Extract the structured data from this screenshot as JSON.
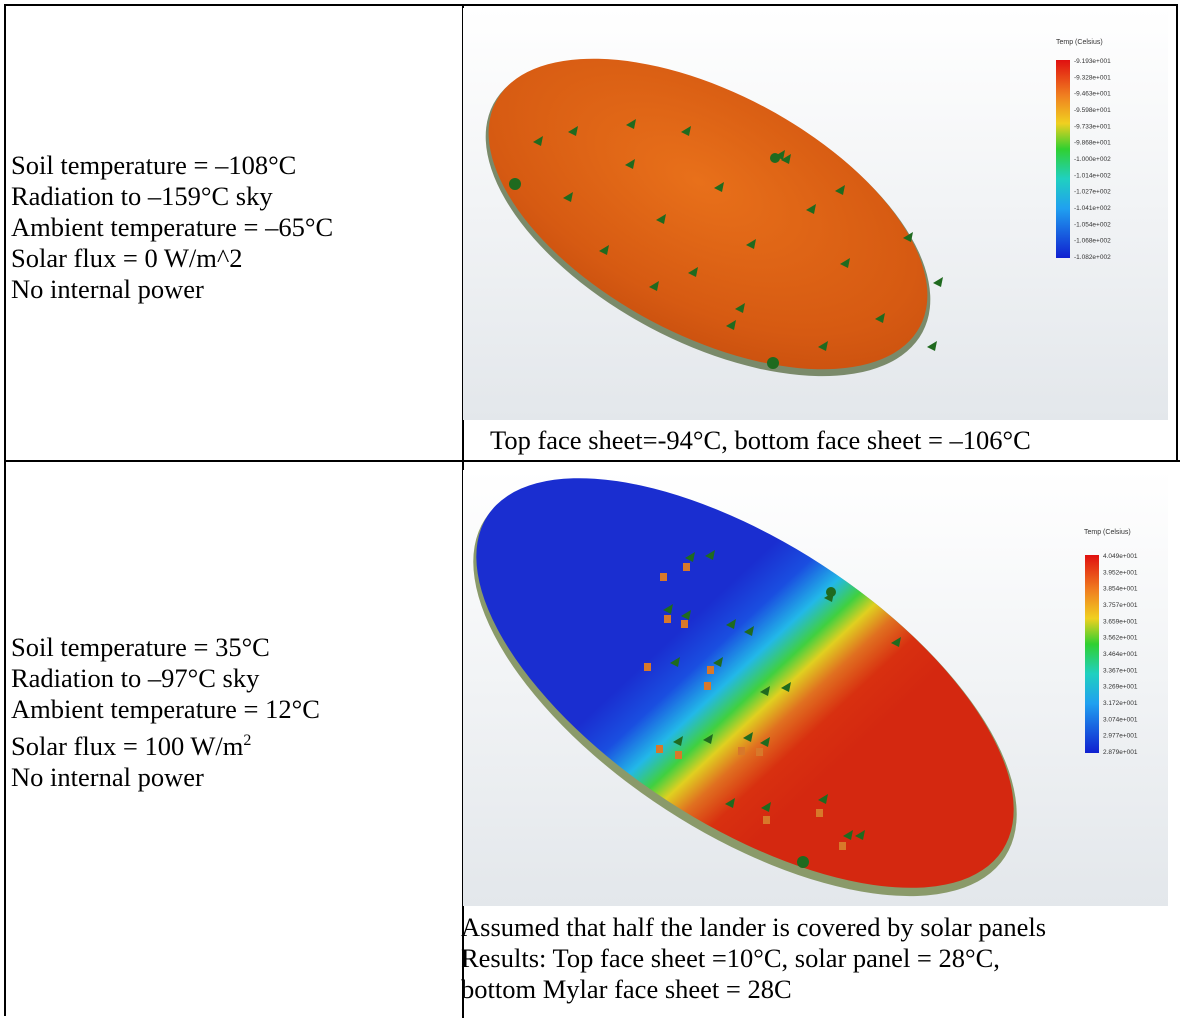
{
  "rows": [
    {
      "conditions": [
        "Soil temperature = –108°C",
        "Radiation to –159°C sky",
        "Ambient temperature = –65°C",
        "Solar flux = 0 W/m^2",
        "No internal power"
      ],
      "legend_title": "Temp (Celsius)",
      "legend_ticks": [
        "-9.193e+001",
        "-9.328e+001",
        "-9.463e+001",
        "-9.598e+001",
        "-9.733e+001",
        "-9.868e+001",
        "-1.000e+002",
        "-1.014e+002",
        "-1.027e+002",
        "-1.041e+002",
        "-1.054e+002",
        "-1.068e+002",
        "-1.082e+002"
      ],
      "caption": [
        "Top face sheet=-94°C, bottom face sheet = –106°C"
      ]
    },
    {
      "conditions": [
        "Soil temperature = 35°C",
        "Radiation to –97°C sky",
        "Ambient temperature = 12°C",
        "Solar flux = 100 W/m",
        "No internal power"
      ],
      "solar_flux_superscript": "2",
      "legend_title": "Temp (Celsius)",
      "legend_ticks": [
        "4.049e+001",
        "3.952e+001",
        "3.854e+001",
        "3.757e+001",
        "3.659e+001",
        "3.562e+001",
        "3.464e+001",
        "3.367e+001",
        "3.269e+001",
        "3.172e+001",
        "3.074e+001",
        "2.977e+001",
        "2.879e+001"
      ],
      "caption": [
        "Assumed that half the lander is covered by solar panels",
        "Results: Top face sheet =10°C, solar panel = 28°C,",
        "bottom Mylar face sheet = 28C"
      ]
    }
  ]
}
